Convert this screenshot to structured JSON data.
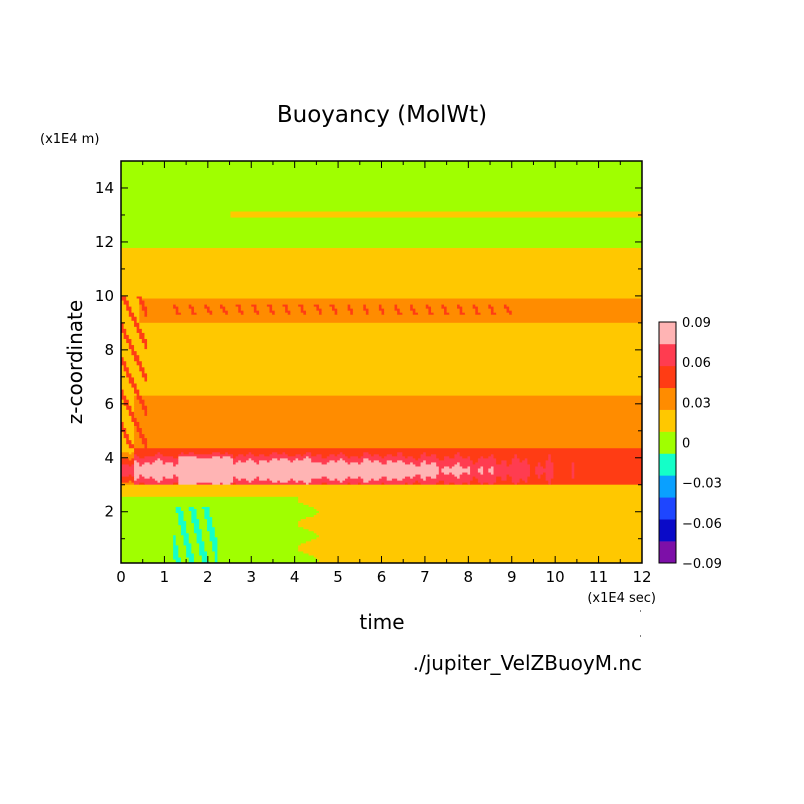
{
  "chart_data": {
    "type": "heatmap",
    "title": "Buoyancy (MolWt)",
    "xlabel": "time",
    "ylabel": "z-coordinate",
    "x_unit": "(x1E4 sec)",
    "y_unit": "(x1E4 m)",
    "xlim": [
      0,
      12
    ],
    "ylim": [
      0.1,
      15
    ],
    "x_ticks": [
      "0",
      "1",
      "2",
      "3",
      "4",
      "5",
      "6",
      "7",
      "8",
      "9",
      "10",
      "11",
      "12"
    ],
    "y_ticks": [
      "2",
      "4",
      "6",
      "8",
      "10",
      "12",
      "14"
    ],
    "x_tick_values": [
      0,
      1,
      2,
      3,
      4,
      5,
      6,
      7,
      8,
      9,
      10,
      11,
      12
    ],
    "y_tick_values": [
      2,
      4,
      6,
      8,
      10,
      12,
      14
    ],
    "colorbar": {
      "levels": [
        -0.09,
        -0.075,
        -0.06,
        -0.045,
        -0.03,
        -0.015,
        0,
        0.015,
        0.03,
        0.045,
        0.06,
        0.075,
        0.09
      ],
      "colors": [
        "#7d0fa8",
        "#0a0ac8",
        "#1e46ff",
        "#0aa0ff",
        "#14ffc8",
        "#a0ff00",
        "#ffc800",
        "#ff8c00",
        "#ff3c14",
        "#ff3c50",
        "#ffb4b4"
      ],
      "tick_labels": [
        "0.09",
        "0.06",
        "0.03",
        "0",
        "−0.03",
        "−0.06",
        "−0.09"
      ],
      "tick_values": [
        0.09,
        0.06,
        0.03,
        0,
        -0.03,
        -0.06,
        -0.09
      ]
    },
    "grid": false,
    "source_file": "./jupiter_VelZBuoyM.nc"
  }
}
